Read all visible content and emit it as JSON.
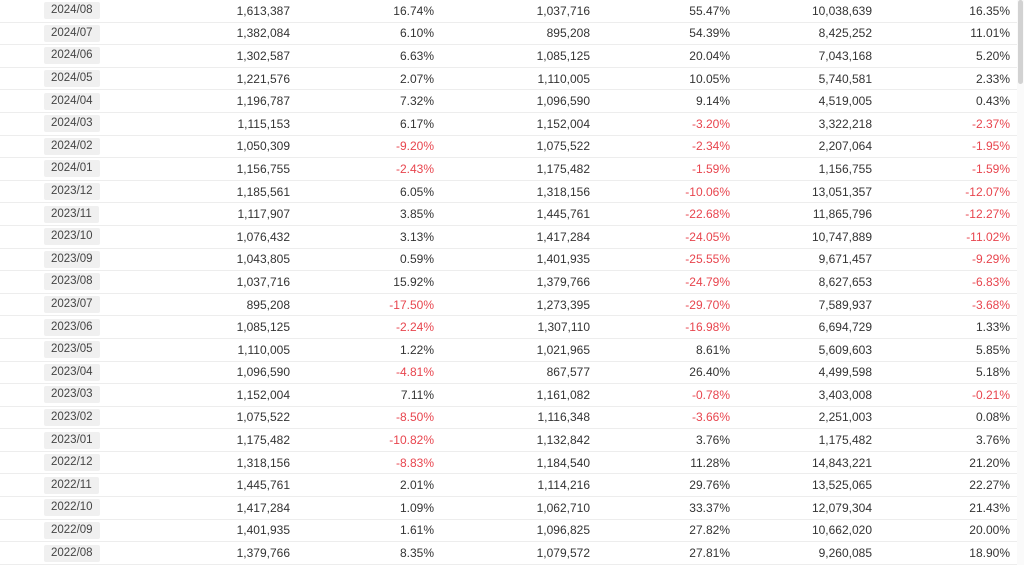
{
  "colors": {
    "neg": "#e8454e",
    "text": "#333333",
    "border": "#ededed",
    "month_bg": "#f0f0f0"
  },
  "chart_data": {
    "type": "table",
    "rows": [
      {
        "month": "2024/08",
        "v1": "1,613,387",
        "p1": "16.74%",
        "v2": "1,037,716",
        "p2": "55.47%",
        "v3": "10,038,639",
        "p3": "16.35%"
      },
      {
        "month": "2024/07",
        "v1": "1,382,084",
        "p1": "6.10%",
        "v2": "895,208",
        "p2": "54.39%",
        "v3": "8,425,252",
        "p3": "11.01%"
      },
      {
        "month": "2024/06",
        "v1": "1,302,587",
        "p1": "6.63%",
        "v2": "1,085,125",
        "p2": "20.04%",
        "v3": "7,043,168",
        "p3": "5.20%"
      },
      {
        "month": "2024/05",
        "v1": "1,221,576",
        "p1": "2.07%",
        "v2": "1,110,005",
        "p2": "10.05%",
        "v3": "5,740,581",
        "p3": "2.33%"
      },
      {
        "month": "2024/04",
        "v1": "1,196,787",
        "p1": "7.32%",
        "v2": "1,096,590",
        "p2": "9.14%",
        "v3": "4,519,005",
        "p3": "0.43%"
      },
      {
        "month": "2024/03",
        "v1": "1,115,153",
        "p1": "6.17%",
        "v2": "1,152,004",
        "p2": "-3.20%",
        "v3": "3,322,218",
        "p3": "-2.37%"
      },
      {
        "month": "2024/02",
        "v1": "1,050,309",
        "p1": "-9.20%",
        "v2": "1,075,522",
        "p2": "-2.34%",
        "v3": "2,207,064",
        "p3": "-1.95%"
      },
      {
        "month": "2024/01",
        "v1": "1,156,755",
        "p1": "-2.43%",
        "v2": "1,175,482",
        "p2": "-1.59%",
        "v3": "1,156,755",
        "p3": "-1.59%"
      },
      {
        "month": "2023/12",
        "v1": "1,185,561",
        "p1": "6.05%",
        "v2": "1,318,156",
        "p2": "-10.06%",
        "v3": "13,051,357",
        "p3": "-12.07%"
      },
      {
        "month": "2023/11",
        "v1": "1,117,907",
        "p1": "3.85%",
        "v2": "1,445,761",
        "p2": "-22.68%",
        "v3": "11,865,796",
        "p3": "-12.27%"
      },
      {
        "month": "2023/10",
        "v1": "1,076,432",
        "p1": "3.13%",
        "v2": "1,417,284",
        "p2": "-24.05%",
        "v3": "10,747,889",
        "p3": "-11.02%"
      },
      {
        "month": "2023/09",
        "v1": "1,043,805",
        "p1": "0.59%",
        "v2": "1,401,935",
        "p2": "-25.55%",
        "v3": "9,671,457",
        "p3": "-9.29%"
      },
      {
        "month": "2023/08",
        "v1": "1,037,716",
        "p1": "15.92%",
        "v2": "1,379,766",
        "p2": "-24.79%",
        "v3": "8,627,653",
        "p3": "-6.83%"
      },
      {
        "month": "2023/07",
        "v1": "895,208",
        "p1": "-17.50%",
        "v2": "1,273,395",
        "p2": "-29.70%",
        "v3": "7,589,937",
        "p3": "-3.68%"
      },
      {
        "month": "2023/06",
        "v1": "1,085,125",
        "p1": "-2.24%",
        "v2": "1,307,110",
        "p2": "-16.98%",
        "v3": "6,694,729",
        "p3": "1.33%"
      },
      {
        "month": "2023/05",
        "v1": "1,110,005",
        "p1": "1.22%",
        "v2": "1,021,965",
        "p2": "8.61%",
        "v3": "5,609,603",
        "p3": "5.85%"
      },
      {
        "month": "2023/04",
        "v1": "1,096,590",
        "p1": "-4.81%",
        "v2": "867,577",
        "p2": "26.40%",
        "v3": "4,499,598",
        "p3": "5.18%"
      },
      {
        "month": "2023/03",
        "v1": "1,152,004",
        "p1": "7.11%",
        "v2": "1,161,082",
        "p2": "-0.78%",
        "v3": "3,403,008",
        "p3": "-0.21%"
      },
      {
        "month": "2023/02",
        "v1": "1,075,522",
        "p1": "-8.50%",
        "v2": "1,116,348",
        "p2": "-3.66%",
        "v3": "2,251,003",
        "p3": "0.08%"
      },
      {
        "month": "2023/01",
        "v1": "1,175,482",
        "p1": "-10.82%",
        "v2": "1,132,842",
        "p2": "3.76%",
        "v3": "1,175,482",
        "p3": "3.76%"
      },
      {
        "month": "2022/12",
        "v1": "1,318,156",
        "p1": "-8.83%",
        "v2": "1,184,540",
        "p2": "11.28%",
        "v3": "14,843,221",
        "p3": "21.20%"
      },
      {
        "month": "2022/11",
        "v1": "1,445,761",
        "p1": "2.01%",
        "v2": "1,114,216",
        "p2": "29.76%",
        "v3": "13,525,065",
        "p3": "22.27%"
      },
      {
        "month": "2022/10",
        "v1": "1,417,284",
        "p1": "1.09%",
        "v2": "1,062,710",
        "p2": "33.37%",
        "v3": "12,079,304",
        "p3": "21.43%"
      },
      {
        "month": "2022/09",
        "v1": "1,401,935",
        "p1": "1.61%",
        "v2": "1,096,825",
        "p2": "27.82%",
        "v3": "10,662,020",
        "p3": "20.00%"
      },
      {
        "month": "2022/08",
        "v1": "1,379,766",
        "p1": "8.35%",
        "v2": "1,079,572",
        "p2": "27.81%",
        "v3": "9,260,085",
        "p3": "18.90%"
      }
    ]
  }
}
